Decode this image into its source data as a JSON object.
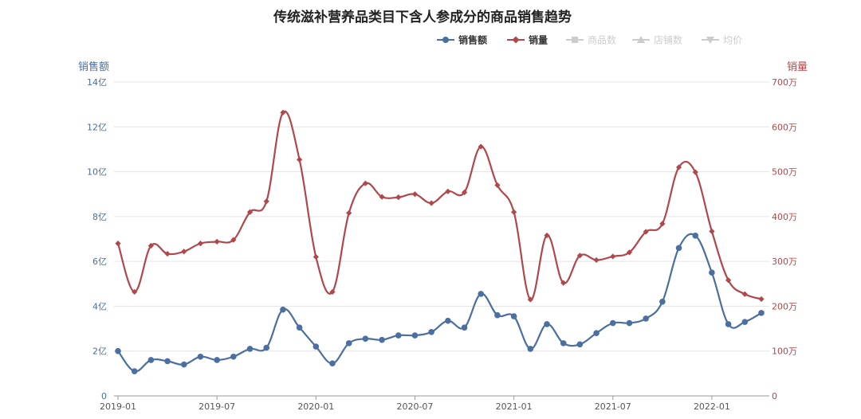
{
  "chart_data": {
    "type": "line",
    "title": "传统滋补营养品类目下含人参成分的商品销售趋势",
    "legend": {
      "placement": "top-right",
      "items": [
        {
          "name": "销售额",
          "active": true,
          "color": "#4a6fa0",
          "marker": "circle"
        },
        {
          "name": "销量",
          "active": true,
          "color": "#b0474a",
          "marker": "diamond"
        },
        {
          "name": "商品数",
          "active": false,
          "color": "#cccccc",
          "marker": "square"
        },
        {
          "name": "店铺数",
          "active": false,
          "color": "#cccccc",
          "marker": "triangle"
        },
        {
          "name": "均价",
          "active": false,
          "color": "#cccccc",
          "marker": "triangle-down"
        }
      ]
    },
    "y_left": {
      "label": "销售额",
      "color": "#4a6fa0",
      "range": [
        0,
        14
      ],
      "ticks": [
        {
          "value": 0,
          "label": "0"
        },
        {
          "value": 2,
          "label": "2亿"
        },
        {
          "value": 4,
          "label": "4亿"
        },
        {
          "value": 6,
          "label": "6亿"
        },
        {
          "value": 8,
          "label": "8亿"
        },
        {
          "value": 10,
          "label": "10亿"
        },
        {
          "value": 12,
          "label": "12亿"
        },
        {
          "value": 14,
          "label": "14亿"
        }
      ]
    },
    "y_right": {
      "label": "销量",
      "color": "#b0474a",
      "range": [
        0,
        700
      ],
      "ticks": [
        {
          "value": 0,
          "label": "0"
        },
        {
          "value": 100,
          "label": "100万"
        },
        {
          "value": 200,
          "label": "200万"
        },
        {
          "value": 300,
          "label": "300万"
        },
        {
          "value": 400,
          "label": "400万"
        },
        {
          "value": 500,
          "label": "500万"
        },
        {
          "value": 600,
          "label": "600万"
        },
        {
          "value": 700,
          "label": "700万"
        }
      ]
    },
    "x": [
      "2019-01",
      "2019-02",
      "2019-03",
      "2019-04",
      "2019-05",
      "2019-06",
      "2019-07",
      "2019-08",
      "2019-09",
      "2019-10",
      "2019-11",
      "2019-12",
      "2020-01",
      "2020-02",
      "2020-03",
      "2020-04",
      "2020-05",
      "2020-06",
      "2020-07",
      "2020-08",
      "2020-09",
      "2020-10",
      "2020-11",
      "2020-12",
      "2021-01",
      "2021-02",
      "2021-03",
      "2021-04",
      "2021-05",
      "2021-06",
      "2021-07",
      "2021-08",
      "2021-09",
      "2021-10",
      "2021-11",
      "2021-12",
      "2022-01",
      "2022-02",
      "2022-03",
      "2022-04"
    ],
    "x_tick_labels": [
      "2019-01",
      "2019-07",
      "2020-01",
      "2020-07",
      "2021-01",
      "2021-07",
      "2022-01"
    ],
    "grid": true,
    "series": [
      {
        "name": "销售额",
        "axis": "left",
        "color": "#4a6fa0",
        "values": [
          2.0,
          1.1,
          1.6,
          1.55,
          1.4,
          1.75,
          1.6,
          1.75,
          2.1,
          2.15,
          3.85,
          3.05,
          2.2,
          1.45,
          2.35,
          2.55,
          2.5,
          2.7,
          2.7,
          2.85,
          3.35,
          3.05,
          4.55,
          3.6,
          3.55,
          2.1,
          3.2,
          2.35,
          2.3,
          2.8,
          3.25,
          3.25,
          3.45,
          4.2,
          6.6,
          7.15,
          5.5,
          3.2,
          3.3,
          3.7
        ]
      },
      {
        "name": "销量",
        "axis": "right",
        "color": "#b0474a",
        "values": [
          340,
          232,
          335,
          317,
          322,
          340,
          344,
          348,
          410,
          434,
          632,
          527,
          310,
          232,
          408,
          474,
          444,
          443,
          450,
          430,
          456,
          454,
          556,
          470,
          410,
          215,
          358,
          252,
          313,
          303,
          311,
          320,
          366,
          384,
          510,
          499,
          367,
          258,
          227,
          216
        ]
      }
    ]
  }
}
